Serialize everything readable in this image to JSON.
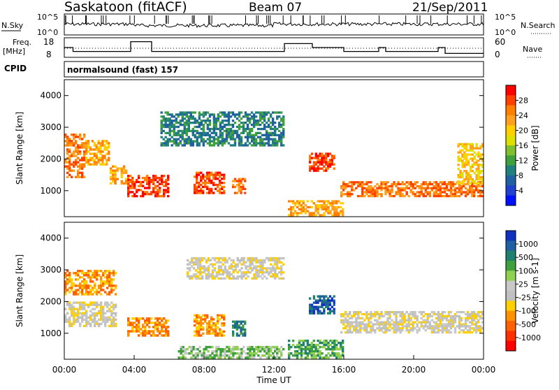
{
  "header": {
    "station": "Saskatoon (fitACF)",
    "beam": "Beam 07",
    "date": "21/Sep/2011",
    "cpid_label": "CPID",
    "program": "normalsound (fast) 157"
  },
  "nsky_panel": {
    "left_label": "N.Sky",
    "right_label": "N.Search",
    "ticks_left": [
      "10^5",
      "10^0"
    ],
    "ticks_right": [
      "10^5",
      "10^0"
    ]
  },
  "freq_panel": {
    "left_label_line1": "Freq.",
    "left_label_line2": "[MHz]",
    "right_label": "Nave",
    "ticks_left": [
      "18",
      "8"
    ],
    "ticks_right": [
      "60",
      "0"
    ]
  },
  "power_panel": {
    "ylabel": "Slant Range [km]",
    "yticks": [
      "4000",
      "3000",
      "2000",
      "1000"
    ],
    "colorbar_label": "Power [dB]",
    "colorbar_ticks": [
      "28",
      "24",
      "20",
      "16",
      "12",
      "8",
      "4"
    ],
    "colorbar_colors": [
      "#ff0000",
      "#ff4000",
      "#ff8000",
      "#ffa020",
      "#ffd000",
      "#e0e000",
      "#80c030",
      "#40a040",
      "#208080",
      "#2060a0",
      "#2040d0",
      "#0010ff"
    ]
  },
  "velocity_panel": {
    "ylabel": "Slant Range [km]",
    "yticks": [
      "4000",
      "3000",
      "2000",
      "1000"
    ],
    "colorbar_label": "Velocity [m s-1]",
    "colorbar_ticks": [
      "1000",
      "500",
      "100",
      "25",
      "-25",
      "-100",
      "-500",
      "-1000"
    ],
    "colorbar_colors": [
      "#1030c0",
      "#2060a0",
      "#208070",
      "#40a040",
      "#90d050",
      "#c8c8c8",
      "#c0c0c0",
      "#ffd000",
      "#ff9000",
      "#ff6000",
      "#ff3000",
      "#ff0000"
    ]
  },
  "x_axis": {
    "label": "Time UT",
    "ticks": [
      "00:00",
      "04:00",
      "08:00",
      "12:00",
      "16:00",
      "20:00",
      "00:00"
    ]
  },
  "chart_data": [
    {
      "type": "line",
      "title": "N.Sky / N.Search",
      "y_scale": "log",
      "ylim": [
        1,
        100000
      ],
      "xlim_hours": [
        0,
        24
      ]
    },
    {
      "type": "line",
      "title": "Freq. [MHz] / Nave",
      "ylim_freq": [
        8,
        18
      ],
      "ylim_nave": [
        0,
        60
      ],
      "freq_segments": [
        {
          "start": 0.0,
          "end": 0.5,
          "value": 13
        },
        {
          "start": 0.5,
          "end": 3.8,
          "value": 11
        },
        {
          "start": 3.8,
          "end": 5.0,
          "value": 16
        },
        {
          "start": 5.0,
          "end": 12.6,
          "value": 11
        },
        {
          "start": 12.6,
          "end": 14.2,
          "value": 15
        },
        {
          "start": 14.2,
          "end": 16.0,
          "value": 13
        },
        {
          "start": 16.0,
          "end": 18.0,
          "value": 11
        },
        {
          "start": 18.0,
          "end": 18.4,
          "value": 13
        },
        {
          "start": 18.4,
          "end": 21.4,
          "value": 11
        },
        {
          "start": 21.4,
          "end": 21.8,
          "value": 13
        },
        {
          "start": 21.8,
          "end": 24.0,
          "value": 10
        }
      ],
      "xlim_hours": [
        0,
        24
      ]
    },
    {
      "type": "heatmap",
      "title": "Power [dB]",
      "ylim_km": [
        180,
        4500
      ],
      "xlim_hours": [
        0,
        24
      ],
      "blobs": [
        {
          "t0": 0.0,
          "t1": 1.2,
          "r0": 1400,
          "r1": 2800,
          "level": 0.8
        },
        {
          "t0": 1.2,
          "t1": 2.6,
          "r0": 1800,
          "r1": 2600,
          "level": 0.75
        },
        {
          "t0": 2.6,
          "t1": 3.6,
          "r0": 1200,
          "r1": 1800,
          "level": 0.7
        },
        {
          "t0": 3.6,
          "t1": 6.0,
          "r0": 800,
          "r1": 1500,
          "level": 0.95
        },
        {
          "t0": 7.4,
          "t1": 9.2,
          "r0": 900,
          "r1": 1600,
          "level": 0.9
        },
        {
          "t0": 9.6,
          "t1": 10.4,
          "r0": 900,
          "r1": 1400,
          "level": 0.85
        },
        {
          "t0": 5.5,
          "t1": 12.6,
          "r0": 2400,
          "r1": 3500,
          "level": 0.3
        },
        {
          "t0": 14.0,
          "t1": 15.5,
          "r0": 1600,
          "r1": 2200,
          "level": 0.9
        },
        {
          "t0": 15.8,
          "t1": 24.0,
          "r0": 800,
          "r1": 1300,
          "level": 0.85
        },
        {
          "t0": 22.5,
          "t1": 24.0,
          "r0": 1200,
          "r1": 2500,
          "level": 0.6
        },
        {
          "t0": 12.8,
          "t1": 16.0,
          "r0": 200,
          "r1": 700,
          "level": 0.7
        }
      ]
    },
    {
      "type": "heatmap",
      "title": "Velocity [m s-1]",
      "ylim_km": [
        180,
        4500
      ],
      "xlim_hours": [
        0,
        24
      ],
      "blobs": [
        {
          "t0": 0.0,
          "t1": 3.0,
          "r0": 1200,
          "r1": 2000,
          "level": 0.5
        },
        {
          "t0": 0.0,
          "t1": 3.0,
          "r0": 2200,
          "r1": 3000,
          "level": 0.25
        },
        {
          "t0": 3.6,
          "t1": 6.0,
          "r0": 900,
          "r1": 1500,
          "level": 0.3
        },
        {
          "t0": 7.4,
          "t1": 9.2,
          "r0": 900,
          "r1": 1600,
          "level": 0.3
        },
        {
          "t0": 9.6,
          "t1": 10.4,
          "r0": 900,
          "r1": 1400,
          "level": 0.85
        },
        {
          "t0": 7.0,
          "t1": 12.6,
          "r0": 2700,
          "r1": 3400,
          "level": 0.5
        },
        {
          "t0": 14.0,
          "t1": 15.5,
          "r0": 1600,
          "r1": 2200,
          "level": 0.9
        },
        {
          "t0": 15.8,
          "t1": 24.0,
          "r0": 1000,
          "r1": 1700,
          "level": 0.5
        },
        {
          "t0": 6.5,
          "t1": 12.6,
          "r0": 200,
          "r1": 600,
          "level": 0.65
        },
        {
          "t0": 12.8,
          "t1": 16.0,
          "r0": 200,
          "r1": 800,
          "level": 0.7
        }
      ]
    }
  ]
}
